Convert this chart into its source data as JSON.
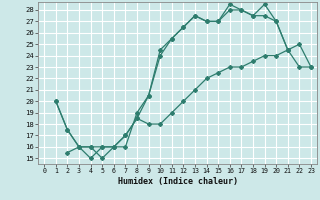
{
  "title": "",
  "xlabel": "Humidex (Indice chaleur)",
  "ylabel": "",
  "bg_color": "#cde8e8",
  "line_color": "#2e7d6e",
  "grid_color": "#ffffff",
  "xlim": [
    -0.5,
    23.5
  ],
  "ylim": [
    14.5,
    28.7
  ],
  "xticks": [
    0,
    1,
    2,
    3,
    4,
    5,
    6,
    7,
    8,
    9,
    10,
    11,
    12,
    13,
    14,
    15,
    16,
    17,
    18,
    19,
    20,
    21,
    22,
    23
  ],
  "yticks": [
    15,
    16,
    17,
    18,
    19,
    20,
    21,
    22,
    23,
    24,
    25,
    26,
    27,
    28
  ],
  "line1_x": [
    1,
    2,
    3,
    4,
    5,
    6,
    7,
    8,
    9,
    10,
    11,
    12,
    13,
    14,
    15,
    16,
    17,
    18,
    19,
    20,
    21
  ],
  "line1_y": [
    20,
    17.5,
    16,
    16,
    15,
    16,
    16,
    19,
    20.5,
    24.5,
    25.5,
    26.5,
    27.5,
    27,
    27,
    28,
    28,
    27.5,
    28.5,
    27,
    24.5
  ],
  "line2_x": [
    1,
    2,
    3,
    4,
    5,
    6,
    7,
    8,
    9,
    10,
    11,
    12,
    13,
    14,
    15,
    16,
    17,
    18,
    19,
    20,
    21,
    22,
    23
  ],
  "line2_y": [
    20,
    17.5,
    16,
    16,
    16,
    16,
    17,
    18.5,
    20.5,
    24,
    25.5,
    26.5,
    27.5,
    27,
    27,
    28.5,
    28,
    27.5,
    27.5,
    27,
    24.5,
    23,
    23
  ],
  "line3_x": [
    2,
    3,
    4,
    5,
    6,
    7,
    8,
    9,
    10,
    11,
    12,
    13,
    14,
    15,
    16,
    17,
    18,
    19,
    20,
    21,
    22,
    23
  ],
  "line3_y": [
    15.5,
    16,
    15,
    16,
    16,
    17,
    18.5,
    18,
    18,
    19,
    20,
    21,
    22,
    22.5,
    23,
    23,
    23.5,
    24,
    24,
    24.5,
    25,
    23
  ]
}
